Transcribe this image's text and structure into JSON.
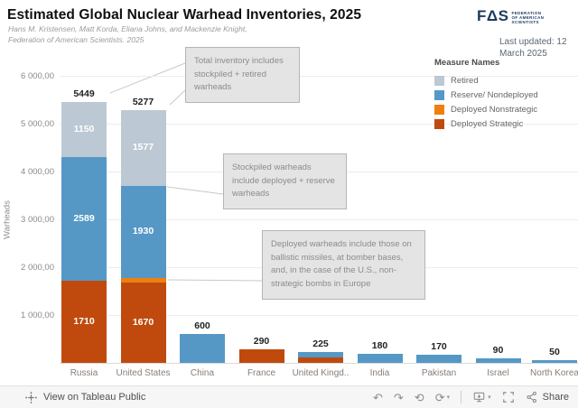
{
  "header": {
    "title": "Estimated Global Nuclear Warhead Inventories, 2025",
    "subtitle1": "Hans M. Kristensen, Matt Korda, Eliana Johns, and Mackenzie Knight,",
    "subtitle2": "Federation of American Scientists. 2025",
    "last_updated": "Last updated: 12 March 2025",
    "logo": {
      "wordmark": "FΔS",
      "org1": "FEDERATION",
      "org2": "OF AMERICAN",
      "org3": "SCIENTISTS"
    }
  },
  "legend": {
    "title": "Measure Names",
    "items": [
      {
        "label": "Retired",
        "color": "#bcc8d3"
      },
      {
        "label": "Reserve/ Nondeployed",
        "color": "#5598c5"
      },
      {
        "label": "Deployed Nonstrategic",
        "color": "#ef8010"
      },
      {
        "label": "Deployed Strategic",
        "color": "#c04a0d"
      }
    ]
  },
  "chart_data": {
    "type": "bar",
    "subtype": "stacked",
    "title": "Estimated Global Nuclear Warhead Inventories, 2025",
    "ylabel": "Warheads",
    "xlabel": "",
    "ylim": [
      0,
      6300
    ],
    "grid": true,
    "legend_position": "right",
    "categories": [
      "Russia",
      "United States",
      "China",
      "France",
      "United Kingd..",
      "India",
      "Pakistan",
      "Israel",
      "North Korea"
    ],
    "totals": [
      5449,
      5277,
      600,
      290,
      225,
      180,
      170,
      90,
      50
    ],
    "series": [
      {
        "name": "Deployed Strategic",
        "color": "#c04a0d",
        "values": [
          1710,
          1670,
          0,
          290,
          120,
          0,
          0,
          0,
          0
        ]
      },
      {
        "name": "Deployed Nonstrategic",
        "color": "#ef8010",
        "values": [
          0,
          100,
          0,
          0,
          0,
          0,
          0,
          0,
          0
        ]
      },
      {
        "name": "Reserve/ Nondeployed",
        "color": "#5598c5",
        "values": [
          2589,
          1930,
          600,
          0,
          105,
          180,
          170,
          90,
          50
        ]
      },
      {
        "name": "Retired",
        "color": "#bcc8d3",
        "values": [
          1150,
          1577,
          0,
          0,
          0,
          0,
          0,
          0,
          0
        ]
      }
    ],
    "y_ticks": [
      {
        "label": "1 000,00",
        "value": 1000
      },
      {
        "label": "2 000,00",
        "value": 2000
      },
      {
        "label": "3 000,00",
        "value": 3000
      },
      {
        "label": "4 000,00",
        "value": 4000
      },
      {
        "label": "5 000,00",
        "value": 5000
      },
      {
        "label": "6 000,00",
        "value": 6000
      }
    ]
  },
  "annotations": [
    {
      "text": "Total inventory includes stockpiled + retired warheads"
    },
    {
      "text": "Stockpiled warheads include deployed + reserve warheads"
    },
    {
      "text": "Deployed warheads include those on ballistic missiles, at bomber bases, and, in the case of the U.S., non-strategic bombs in Europe"
    }
  ],
  "footer": {
    "view_label": "View on Tableau Public",
    "share_label": "Share"
  }
}
